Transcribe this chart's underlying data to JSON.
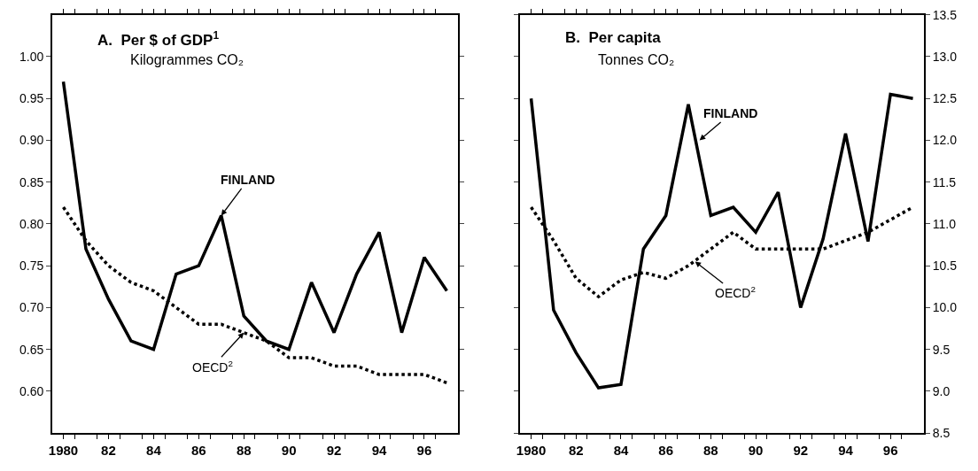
{
  "chart_data": [
    {
      "type": "line",
      "title": "A.  Per $ of GDP$^{1}$",
      "subtitle": "Kilogrammes CO₂",
      "x": [
        1980,
        1981,
        1982,
        1983,
        1984,
        1985,
        1986,
        1987,
        1988,
        1989,
        1990,
        1991,
        1992,
        1993,
        1994,
        1995,
        1996,
        1997
      ],
      "series": [
        {
          "color": "#000000",
          "line_style": "solid",
          "values": [
            0.97,
            0.77,
            0.71,
            0.66,
            0.65,
            0.74,
            0.75,
            0.81,
            0.69,
            0.66,
            0.65,
            0.73,
            0.67,
            0.74,
            0.79,
            0.67,
            0.76,
            0.72
          ]
        },
        {
          "color": "#000000",
          "line_style": "dotted",
          "values": [
            0.82,
            0.78,
            0.75,
            0.73,
            0.72,
            0.7,
            0.68,
            0.68,
            0.67,
            0.66,
            0.64,
            0.64,
            0.63,
            0.63,
            0.62,
            0.62,
            0.62,
            0.61
          ]
        }
      ],
      "annotations": [
        {
          "text": "FINLAND",
          "x": 1987,
          "y": 0.81
        },
        {
          "text": "OECD$^{2}$",
          "x": 1988,
          "y": 0.67
        }
      ],
      "xlim": [
        1979.5,
        1997.5
      ],
      "xticks": [
        {
          "value": 1980,
          "label": "1980"
        },
        {
          "value": 1980.5,
          "label": null
        },
        {
          "value": 1981.5,
          "label": null
        },
        {
          "value": 1982,
          "label": "82"
        },
        {
          "value": 1982.5,
          "label": null
        },
        {
          "value": 1983.5,
          "label": null
        },
        {
          "value": 1984,
          "label": "84"
        },
        {
          "value": 1984.5,
          "label": null
        },
        {
          "value": 1985.5,
          "label": null
        },
        {
          "value": 1986,
          "label": "86"
        },
        {
          "value": 1986.5,
          "label": null
        },
        {
          "value": 1987.5,
          "label": null
        },
        {
          "value": 1988,
          "label": "88"
        },
        {
          "value": 1988.5,
          "label": null
        },
        {
          "value": 1989.5,
          "label": null
        },
        {
          "value": 1990,
          "label": "90"
        },
        {
          "value": 1990.5,
          "label": null
        },
        {
          "value": 1991.5,
          "label": null
        },
        {
          "value": 1992,
          "label": "92"
        },
        {
          "value": 1992.5,
          "label": null
        },
        {
          "value": 1993.5,
          "label": null
        },
        {
          "value": 1994,
          "label": "94"
        },
        {
          "value": 1994.5,
          "label": null
        },
        {
          "value": 1995.5,
          "label": null
        },
        {
          "value": 1996,
          "label": "96"
        },
        {
          "value": 1996.5,
          "label": null
        }
      ],
      "ylim": [
        0.55,
        1.05
      ],
      "yticks": [
        {
          "value": 0.6,
          "label": "0.60"
        },
        {
          "value": 0.65,
          "label": "0.65"
        },
        {
          "value": 0.7,
          "label": "0.70"
        },
        {
          "value": 0.75,
          "label": "0.75"
        },
        {
          "value": 0.8,
          "label": "0.80"
        },
        {
          "value": 0.85,
          "label": "0.85"
        },
        {
          "value": 0.9,
          "label": "0.90"
        },
        {
          "value": 0.95,
          "label": "0.95"
        },
        {
          "value": 1.0,
          "label": "1.00"
        }
      ],
      "marker": "none"
    },
    {
      "type": "line",
      "title": "B.  Per capita",
      "subtitle": "Tonnes CO₂",
      "x": [
        1980,
        1981,
        1982,
        1983,
        1984,
        1985,
        1986,
        1987,
        1988,
        1989,
        1990,
        1991,
        1992,
        1993,
        1994,
        1995,
        1996,
        1997
      ],
      "series": [
        {
          "color": "#000000",
          "line_style": "solid",
          "values": [
            12.5,
            9.97,
            9.46,
            9.04,
            9.08,
            10.7,
            11.1,
            12.43,
            11.1,
            11.2,
            10.9,
            11.38,
            10.0,
            10.82,
            12.08,
            10.79,
            12.55,
            12.5
          ]
        },
        {
          "color": "#000000",
          "line_style": "dotted",
          "values": [
            11.2,
            10.8,
            10.35,
            10.13,
            10.33,
            10.42,
            10.35,
            10.5,
            10.7,
            10.9,
            10.7,
            10.7,
            10.7,
            10.7,
            10.8,
            10.9,
            11.05,
            11.2
          ]
        }
      ],
      "annotations": [
        {
          "text": "FINLAND",
          "x": 1987.5,
          "y": 12.0
        },
        {
          "text": "OECD$^{2}$",
          "x": 1987.3,
          "y": 10.55
        }
      ],
      "xlim": [
        1979.5,
        1997.5
      ],
      "xticks": [
        {
          "value": 1980,
          "label": "1980"
        },
        {
          "value": 1980.5,
          "label": null
        },
        {
          "value": 1981.5,
          "label": null
        },
        {
          "value": 1982,
          "label": "82"
        },
        {
          "value": 1982.5,
          "label": null
        },
        {
          "value": 1983.5,
          "label": null
        },
        {
          "value": 1984,
          "label": "84"
        },
        {
          "value": 1984.5,
          "label": null
        },
        {
          "value": 1985.5,
          "label": null
        },
        {
          "value": 1986,
          "label": "86"
        },
        {
          "value": 1986.5,
          "label": null
        },
        {
          "value": 1987.5,
          "label": null
        },
        {
          "value": 1988,
          "label": "88"
        },
        {
          "value": 1988.5,
          "label": null
        },
        {
          "value": 1989.5,
          "label": null
        },
        {
          "value": 1990,
          "label": "90"
        },
        {
          "value": 1990.5,
          "label": null
        },
        {
          "value": 1991.5,
          "label": null
        },
        {
          "value": 1992,
          "label": "92"
        },
        {
          "value": 1992.5,
          "label": null
        },
        {
          "value": 1993.5,
          "label": null
        },
        {
          "value": 1994,
          "label": "94"
        },
        {
          "value": 1994.5,
          "label": null
        },
        {
          "value": 1995.5,
          "label": null
        },
        {
          "value": 1996,
          "label": "96"
        },
        {
          "value": 1996.5,
          "label": null
        }
      ],
      "ylim": [
        8.5,
        13.5
      ],
      "yticks": [
        {
          "value": 8.5,
          "label": "8.5"
        },
        {
          "value": 9.0,
          "label": "9.0"
        },
        {
          "value": 9.5,
          "label": "9.5"
        },
        {
          "value": 10.0,
          "label": "10.0"
        },
        {
          "value": 10.5,
          "label": "10.5"
        },
        {
          "value": 11.0,
          "label": "11.0"
        },
        {
          "value": 11.5,
          "label": "11.5"
        },
        {
          "value": 12.0,
          "label": "12.0"
        },
        {
          "value": 12.5,
          "label": "12.5"
        },
        {
          "value": 13.0,
          "label": "13.0"
        },
        {
          "value": 13.5,
          "label": "13.5"
        }
      ],
      "marker": "none"
    }
  ]
}
